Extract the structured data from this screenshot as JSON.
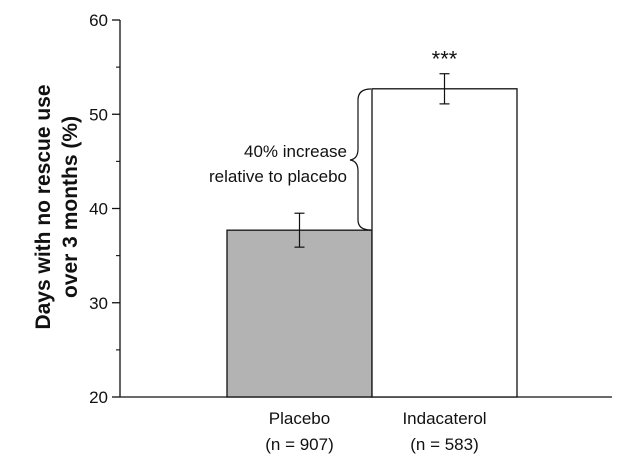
{
  "chart_data": {
    "type": "bar",
    "categories": [
      "Placebo",
      "Indacaterol"
    ],
    "category_sublabels": [
      "(n = 907)",
      "(n = 583)"
    ],
    "values": [
      37.7,
      52.7
    ],
    "error_low": [
      35.9,
      51.1
    ],
    "error_high": [
      39.5,
      54.3
    ],
    "bar_colors": [
      "#b3b3b3",
      "#ffffff"
    ],
    "ylabel_lines": [
      "Days with no rescue use",
      "over 3 months (%)"
    ],
    "ylim": [
      20,
      60
    ],
    "yticks": [
      20,
      30,
      40,
      50,
      60
    ],
    "y_minor_step": 5,
    "annotation_lines": [
      "40% increase",
      "relative to placebo"
    ],
    "significance": "***",
    "grid": false
  }
}
